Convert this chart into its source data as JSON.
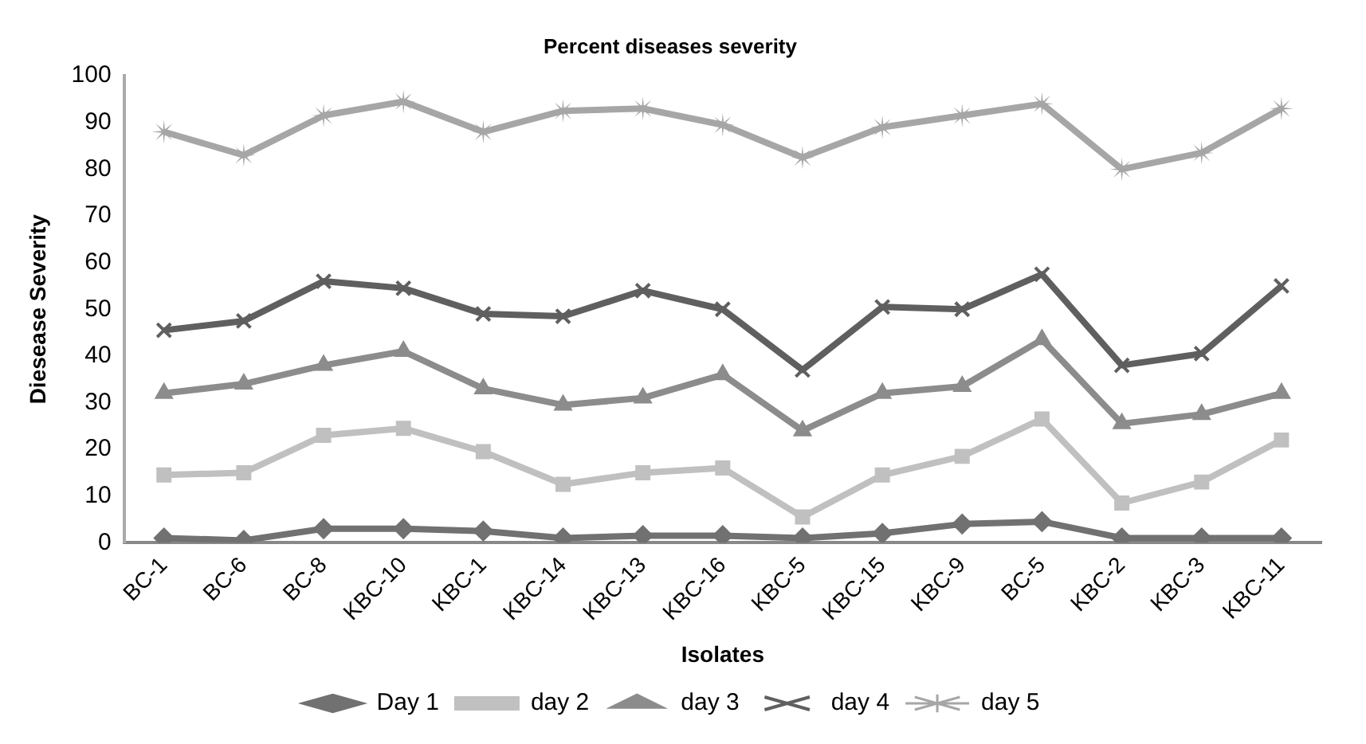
{
  "chart_data": {
    "type": "line",
    "title": "Percent diseases severity",
    "xlabel": "Isolates",
    "ylabel": "Diesease Severity",
    "categories": [
      "BC-1",
      "BC-6",
      "BC-8",
      "KBC-10",
      "KBC-1",
      "KBC-14",
      "KBC-13",
      "KBC-16",
      "KBC-5",
      "KBC-15",
      "KBC-9",
      "BC-5",
      "KBC-2",
      "KBC-3",
      "KBC-11"
    ],
    "series": [
      {
        "name": "Day 1",
        "color": "#717171",
        "marker": "diamond",
        "values": [
          1,
          0.5,
          3,
          3,
          2.5,
          1,
          1.5,
          1.5,
          1,
          2,
          4,
          4.5,
          1,
          1,
          1
        ]
      },
      {
        "name": "day 2",
        "color": "#c0c0c0",
        "marker": "square",
        "values": [
          14.5,
          15,
          23,
          24.5,
          19.5,
          12.5,
          15,
          16,
          5.5,
          14.5,
          18.5,
          26.5,
          8.5,
          13,
          22
        ]
      },
      {
        "name": "day 3",
        "color": "#8c8c8c",
        "marker": "triangle",
        "values": [
          32,
          34,
          38,
          41,
          33,
          29.5,
          31,
          36,
          24,
          32,
          33.5,
          43.5,
          25.5,
          27.5,
          32
        ]
      },
      {
        "name": "day 4",
        "color": "#5f5f5f",
        "marker": "cross",
        "values": [
          45.5,
          47.5,
          56,
          54.5,
          49,
          48.5,
          54,
          50,
          37,
          50.5,
          50,
          57.5,
          38,
          40.5,
          55
        ]
      },
      {
        "name": "day 5",
        "color": "#a6a6a6",
        "marker": "star",
        "values": [
          88,
          83,
          91.5,
          94.5,
          88,
          92.5,
          93,
          89.5,
          82.5,
          89,
          91.5,
          94,
          80,
          83.5,
          93
        ]
      }
    ],
    "ylim": [
      0,
      100
    ],
    "yticks": [
      0,
      10,
      20,
      30,
      40,
      50,
      60,
      70,
      80,
      90,
      100
    ],
    "grid": false,
    "legend": "bottom",
    "line_style": "solid"
  }
}
